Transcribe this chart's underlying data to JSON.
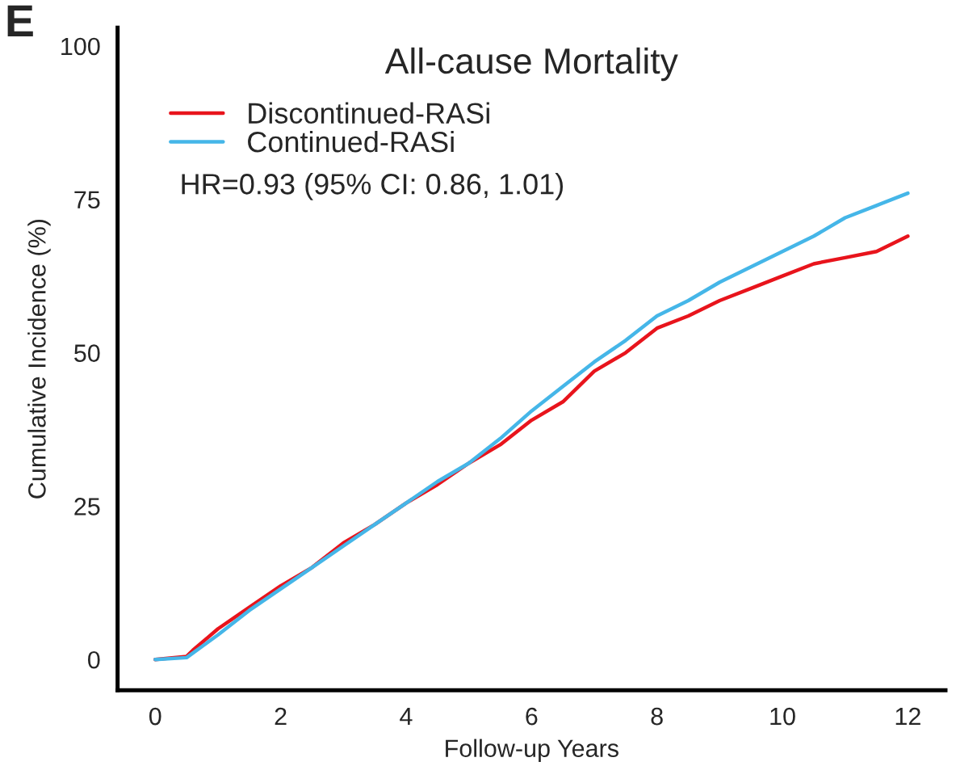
{
  "chart_data": {
    "type": "line",
    "title": "All-cause Mortality",
    "xlabel": "Follow-up Years",
    "ylabel": "Cumulative Incidence (%)",
    "annotations": [
      "E",
      "HR=0.93 (95% CI: 0.86, 1.01)"
    ],
    "xlim": [
      -0.6,
      12.6
    ],
    "ylim": [
      -5,
      103
    ],
    "xticks": [
      0,
      2,
      4,
      6,
      8,
      10,
      12
    ],
    "yticks": [
      0,
      25,
      50,
      75,
      100
    ],
    "grid": false,
    "legend": "top left",
    "line_style": "solid",
    "marker": "none",
    "series": [
      {
        "name": "Discontinued-RASi",
        "color": "#e8141c",
        "x": [
          0,
          0.5,
          0.6,
          1,
          1.5,
          2,
          2.5,
          3,
          3.5,
          4,
          4.5,
          5,
          5.5,
          6,
          6.5,
          7,
          7.5,
          8,
          8.5,
          9,
          9.5,
          10,
          10.5,
          11,
          11.5,
          12
        ],
        "values": [
          0,
          0.5,
          1.5,
          5,
          8.5,
          12,
          15,
          19,
          22,
          25.5,
          28.5,
          32,
          35,
          39,
          42,
          47,
          50,
          54,
          56,
          58.5,
          60.5,
          62.5,
          64.5,
          65.5,
          66.5,
          69
        ]
      },
      {
        "name": "Continued-RASi",
        "color": "#45b6e8",
        "x": [
          0,
          0.5,
          1,
          1.5,
          2,
          2.5,
          3,
          3.5,
          4,
          4.5,
          5,
          5.5,
          6,
          6.5,
          7,
          7.5,
          8,
          8.5,
          9,
          9.5,
          10,
          10.5,
          11,
          11.5,
          12
        ],
        "values": [
          0,
          0.3,
          4,
          8,
          11.5,
          15,
          18.5,
          22,
          25.5,
          29,
          32,
          36,
          40.5,
          44.5,
          48.5,
          52,
          56,
          58.5,
          61.5,
          64,
          66.5,
          69,
          72,
          74,
          76
        ]
      }
    ]
  }
}
